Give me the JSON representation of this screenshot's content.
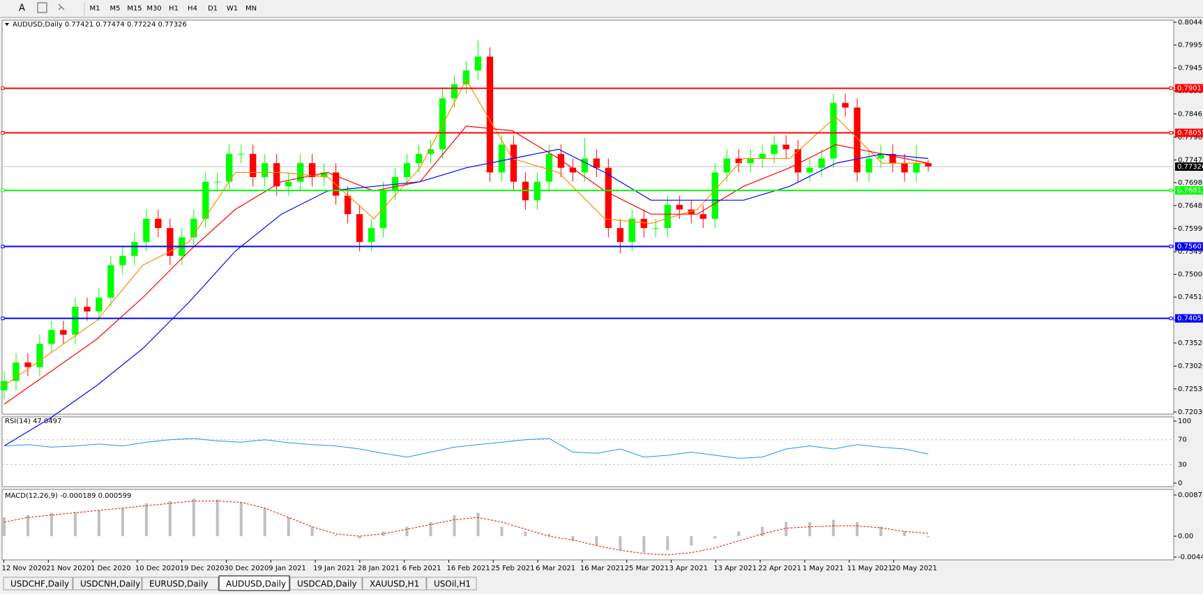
{
  "toolbar": {
    "buttons": [
      "M1",
      "M5",
      "M15",
      "M30",
      "H1",
      "H4",
      "D1",
      "W1",
      "MN"
    ]
  },
  "chart": {
    "header": "AUDUSD,Daily  0.77421 0.77474 0.77224 0.77326",
    "price_axis": {
      "ylim": [
        0.7203,
        0.8044
      ],
      "ticks": [
        {
          "value": 0.8044,
          "label": "0.80440"
        },
        {
          "value": 0.7995,
          "label": "0.79950"
        },
        0.79455,
        {
          "value": 0.7896,
          "label": "0.78960"
        },
        0.78465,
        {
          "value": 0.7796,
          "label": "0.77960"
        },
        {
          "value": 0.7747,
          "label": "0.77470"
        },
        {
          "value": 0.7698,
          "label": "0.76980"
        },
        0.76485,
        {
          "value": 0.7599,
          "label": "0.75990"
        },
        {
          "value": 0.7549,
          "label": "0.75490"
        },
        {
          "value": 0.75,
          "label": "0.75000"
        },
        {
          "value": 0.7451,
          "label": "0.74510"
        },
        0.74015,
        {
          "value": 0.7352,
          "label": "0.73520"
        },
        {
          "value": 0.7302,
          "label": "0.73020"
        },
        {
          "value": 0.7253,
          "label": "0.72530"
        },
        {
          "value": 0.7203,
          "label": "0.72030"
        }
      ]
    },
    "levels": [
      {
        "value": 0.79017,
        "color": "#ff0000"
      },
      {
        "value": 0.78055,
        "color": "#ff0000"
      },
      {
        "value": 0.76813,
        "color": "#00ff00"
      },
      {
        "value": 0.75603,
        "color": "#0000ff"
      },
      {
        "value": 0.74051,
        "color": "#0000ff"
      }
    ],
    "current_price": 0.77326,
    "candles": [
      [
        0.725,
        0.729,
        0.723,
        0.727
      ],
      [
        0.727,
        0.733,
        0.725,
        0.731
      ],
      [
        0.731,
        0.733,
        0.728,
        0.73
      ],
      [
        0.73,
        0.737,
        0.728,
        0.735
      ],
      [
        0.735,
        0.74,
        0.733,
        0.738
      ],
      [
        0.738,
        0.74,
        0.735,
        0.737
      ],
      [
        0.737,
        0.745,
        0.735,
        0.743
      ],
      [
        0.743,
        0.745,
        0.74,
        0.742
      ],
      [
        0.742,
        0.747,
        0.74,
        0.745
      ],
      [
        0.745,
        0.754,
        0.743,
        0.752
      ],
      [
        0.752,
        0.756,
        0.75,
        0.754
      ],
      [
        0.754,
        0.759,
        0.752,
        0.757
      ],
      [
        0.757,
        0.764,
        0.755,
        0.762
      ],
      [
        0.762,
        0.764,
        0.758,
        0.76
      ],
      [
        0.76,
        0.762,
        0.752,
        0.754
      ],
      [
        0.754,
        0.76,
        0.752,
        0.758
      ],
      [
        0.758,
        0.764,
        0.756,
        0.762
      ],
      [
        0.762,
        0.772,
        0.76,
        0.77
      ],
      [
        0.77,
        0.772,
        0.768,
        0.77
      ],
      [
        0.77,
        0.778,
        0.768,
        0.776
      ],
      [
        0.776,
        0.778,
        0.774,
        0.776
      ],
      [
        0.776,
        0.778,
        0.769,
        0.771
      ],
      [
        0.771,
        0.776,
        0.769,
        0.774
      ],
      [
        0.774,
        0.776,
        0.767,
        0.769
      ],
      [
        0.769,
        0.772,
        0.767,
        0.77
      ],
      [
        0.77,
        0.776,
        0.768,
        0.774
      ],
      [
        0.774,
        0.776,
        0.769,
        0.771
      ],
      [
        0.771,
        0.774,
        0.769,
        0.772
      ],
      [
        0.772,
        0.774,
        0.765,
        0.767
      ],
      [
        0.767,
        0.769,
        0.761,
        0.763
      ],
      [
        0.763,
        0.765,
        0.755,
        0.757
      ],
      [
        0.757,
        0.762,
        0.755,
        0.76
      ],
      [
        0.76,
        0.77,
        0.758,
        0.768
      ],
      [
        0.768,
        0.773,
        0.766,
        0.771
      ],
      [
        0.771,
        0.776,
        0.769,
        0.774
      ],
      [
        0.774,
        0.778,
        0.772,
        0.776
      ],
      [
        0.776,
        0.779,
        0.774,
        0.777
      ],
      [
        0.777,
        0.79,
        0.775,
        0.788
      ],
      [
        0.788,
        0.793,
        0.786,
        0.791
      ],
      [
        0.791,
        0.796,
        0.789,
        0.794
      ],
      [
        0.794,
        0.8005,
        0.792,
        0.797
      ],
      [
        0.797,
        0.799,
        0.77,
        0.772
      ],
      [
        0.772,
        0.78,
        0.77,
        0.778
      ],
      [
        0.778,
        0.78,
        0.768,
        0.77
      ],
      [
        0.77,
        0.772,
        0.764,
        0.766
      ],
      [
        0.766,
        0.772,
        0.764,
        0.77
      ],
      [
        0.77,
        0.778,
        0.768,
        0.776
      ],
      [
        0.776,
        0.778,
        0.771,
        0.773
      ],
      [
        0.773,
        0.775,
        0.77,
        0.772
      ],
      [
        0.772,
        0.7795,
        0.77,
        0.775
      ],
      [
        0.775,
        0.777,
        0.771,
        0.773
      ],
      [
        0.773,
        0.775,
        0.758,
        0.76
      ],
      [
        0.76,
        0.762,
        0.7545,
        0.757
      ],
      [
        0.757,
        0.764,
        0.755,
        0.762
      ],
      [
        0.762,
        0.764,
        0.758,
        0.76
      ],
      [
        0.76,
        0.762,
        0.758,
        0.76
      ],
      [
        0.76,
        0.767,
        0.758,
        0.765
      ],
      [
        0.765,
        0.767,
        0.762,
        0.764
      ],
      [
        0.764,
        0.766,
        0.761,
        0.763
      ],
      [
        0.763,
        0.765,
        0.76,
        0.762
      ],
      [
        0.762,
        0.774,
        0.76,
        0.772
      ],
      [
        0.772,
        0.777,
        0.77,
        0.775
      ],
      [
        0.775,
        0.777,
        0.772,
        0.774
      ],
      [
        0.774,
        0.777,
        0.772,
        0.775
      ],
      [
        0.775,
        0.778,
        0.773,
        0.776
      ],
      [
        0.776,
        0.78,
        0.774,
        0.778
      ],
      [
        0.778,
        0.78,
        0.775,
        0.777
      ],
      [
        0.777,
        0.779,
        0.77,
        0.772
      ],
      [
        0.772,
        0.775,
        0.77,
        0.773
      ],
      [
        0.773,
        0.777,
        0.771,
        0.775
      ],
      [
        0.775,
        0.789,
        0.773,
        0.787
      ],
      [
        0.787,
        0.789,
        0.784,
        0.786
      ],
      [
        0.786,
        0.788,
        0.77,
        0.772
      ],
      [
        0.772,
        0.777,
        0.77,
        0.775
      ],
      [
        0.775,
        0.778,
        0.773,
        0.776
      ],
      [
        0.776,
        0.778,
        0.772,
        0.774
      ],
      [
        0.774,
        0.776,
        0.77,
        0.772
      ],
      [
        0.772,
        0.778,
        0.77,
        0.774
      ],
      [
        0.774,
        0.7747,
        0.7722,
        0.7733
      ]
    ],
    "moving_averages": [
      {
        "color": "#ff8c00",
        "values": [
          0.726,
          0.733,
          0.74,
          0.752,
          0.757,
          0.772,
          0.772,
          0.771,
          0.762,
          0.773,
          0.792,
          0.775,
          0.772,
          0.762,
          0.761,
          0.764,
          0.775,
          0.775,
          0.784,
          0.774,
          0.774
        ]
      },
      {
        "color": "#ff0000",
        "values": [
          0.722,
          0.729,
          0.736,
          0.745,
          0.755,
          0.764,
          0.77,
          0.772,
          0.768,
          0.77,
          0.782,
          0.781,
          0.775,
          0.768,
          0.763,
          0.763,
          0.769,
          0.773,
          0.778,
          0.776,
          0.774
        ]
      },
      {
        "color": "#0000ff",
        "values": [
          0.713,
          0.719,
          0.726,
          0.734,
          0.744,
          0.755,
          0.763,
          0.768,
          0.769,
          0.77,
          0.773,
          0.775,
          0.777,
          0.772,
          0.766,
          0.766,
          0.766,
          0.769,
          0.774,
          0.776,
          0.775
        ]
      }
    ]
  },
  "rsi": {
    "header": "RSI(14) 47.0497",
    "ylim": [
      0,
      100
    ],
    "ticks": [
      100,
      70,
      30,
      0
    ],
    "values": [
      60,
      62,
      58,
      60,
      63,
      60,
      66,
      70,
      72,
      68,
      66,
      70,
      65,
      62,
      60,
      55,
      48,
      42,
      50,
      58,
      62,
      66,
      70,
      72,
      50,
      48,
      55,
      42,
      45,
      50,
      45,
      40,
      42,
      55,
      60,
      55,
      62,
      58,
      55,
      47
    ]
  },
  "macd": {
    "header": "MACD(12,26,9) -0.000189 0.000599",
    "ylim": [
      -0.00445,
      0.008782
    ],
    "ticks": [
      0.008782,
      {
        "value": 0,
        "label": "0.00"
      },
      -0.00445
    ],
    "histogram": [
      0.004,
      0.0045,
      0.005,
      0.005,
      0.0055,
      0.006,
      0.007,
      0.0075,
      0.008,
      0.0078,
      0.0072,
      0.006,
      0.004,
      0.002,
      0.0002,
      -0.0005,
      0.001,
      0.002,
      0.003,
      0.0045,
      0.005,
      0.002,
      0.001,
      0.0005,
      -0.001,
      -0.002,
      -0.003,
      -0.0035,
      -0.003,
      -0.002,
      -0.0005,
      0.001,
      0.002,
      0.003,
      0.003,
      0.0035,
      0.003,
      0.002,
      0.001,
      -0.0002
    ],
    "signal": [
      0.003,
      0.004,
      0.0045,
      0.005,
      0.0055,
      0.006,
      0.0065,
      0.007,
      0.0075,
      0.0075,
      0.0072,
      0.006,
      0.004,
      0.002,
      0.0005,
      0,
      0.0005,
      0.0015,
      0.0025,
      0.0035,
      0.004,
      0.003,
      0.0015,
      0,
      -0.0008,
      -0.002,
      -0.003,
      -0.0037,
      -0.004,
      -0.0035,
      -0.0025,
      -0.001,
      0.0005,
      0.0017,
      0.002,
      0.0022,
      0.0022,
      0.0018,
      0.001,
      0.0006
    ]
  },
  "dates": [
    "12 Nov 2020",
    "21 Nov 2020",
    "1 Dec 2020",
    "10 Dec 2020",
    "19 Dec 2020",
    "30 Dec 2020",
    "9 Jan 2021",
    "19 Jan 2021",
    "28 Jan 2021",
    "6 Feb 2021",
    "16 Feb 2021",
    "25 Feb 2021",
    "6 Mar 2021",
    "16 Mar 2021",
    "25 Mar 2021",
    "3 Apr 2021",
    "13 Apr 2021",
    "22 Apr 2021",
    "1 May 2021",
    "11 May 2021",
    "20 May 2021"
  ],
  "tabs": {
    "items": [
      "USDCHF,Daily",
      "USDCNH,Daily",
      "EURUSD,Daily",
      "AUDUSD,Daily",
      "USDCAD,Daily",
      "XAUUSD,H1",
      "USOil,H1"
    ],
    "active": 3
  }
}
